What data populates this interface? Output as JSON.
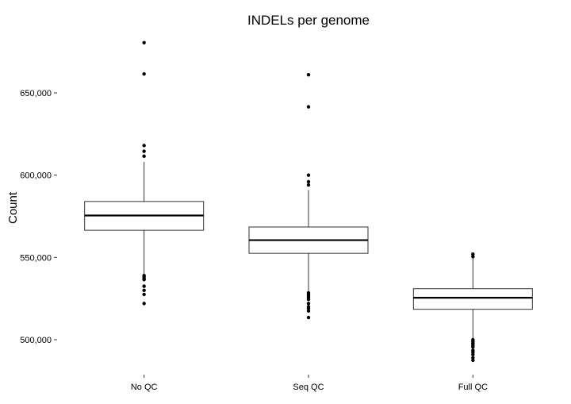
{
  "chart_data": {
    "type": "boxplot",
    "title": "INDELs per genome",
    "xlabel": "",
    "ylabel": "Count",
    "ylim": [
      480000,
      685000
    ],
    "yticks": [
      500000,
      550000,
      600000,
      650000
    ],
    "ytick_labels": [
      "500,000",
      "550,000",
      "600,000",
      "650,000"
    ],
    "grid": false,
    "categories": [
      "No QC",
      "Seq QC",
      "Full QC"
    ],
    "boxes": [
      {
        "name": "No QC",
        "q1": 566500,
        "median": 575500,
        "q3": 584000,
        "whisker_low": 540000,
        "whisker_high": 608000,
        "outliers": [
          680500,
          661500,
          618000,
          614500,
          611500,
          539000,
          538000,
          537000,
          536500,
          532500,
          530000,
          527500,
          522000
        ]
      },
      {
        "name": "Seq QC",
        "q1": 552500,
        "median": 560500,
        "q3": 568500,
        "whisker_low": 529500,
        "whisker_high": 591000,
        "outliers": [
          661000,
          641500,
          600000,
          596000,
          594000,
          528500,
          527500,
          526500,
          525500,
          524500,
          522000,
          520000,
          519000,
          517500,
          513500
        ]
      },
      {
        "name": "Full QC",
        "q1": 518500,
        "median": 525500,
        "q3": 531000,
        "whisker_low": 500500,
        "whisker_high": 549500,
        "outliers": [
          552000,
          550500,
          500000,
          499000,
          498000,
          497500,
          496500,
          495500,
          493500,
          492500,
          491000,
          489000,
          487500
        ]
      }
    ]
  }
}
